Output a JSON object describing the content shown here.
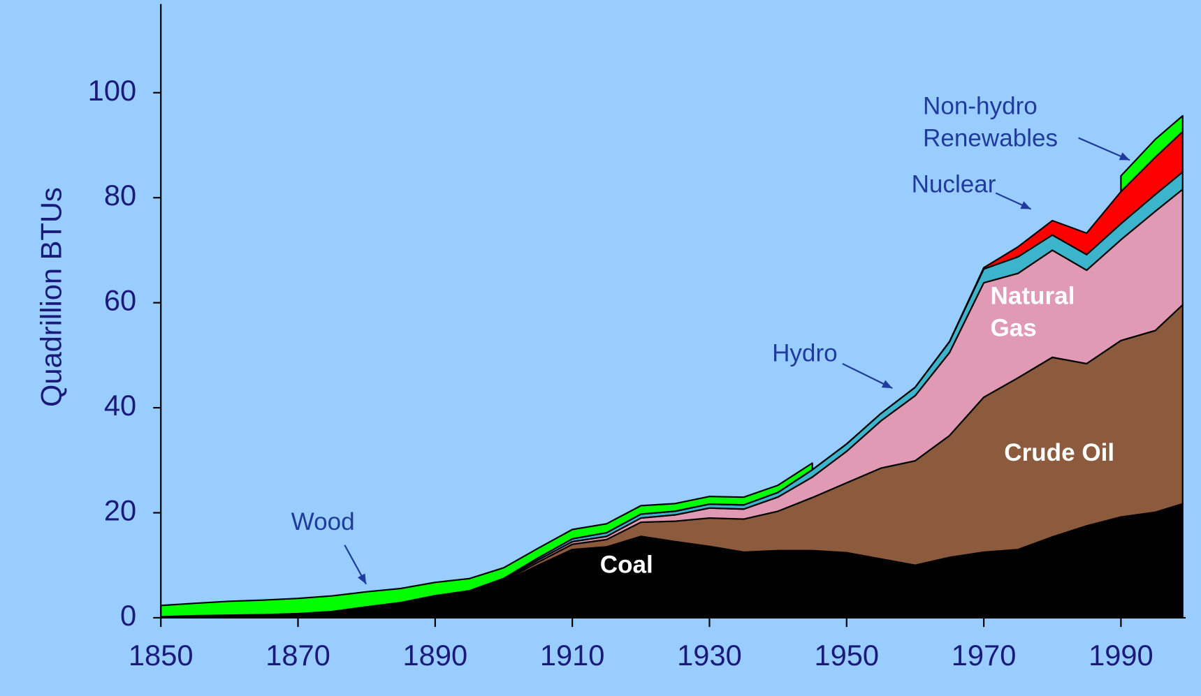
{
  "chart_data": {
    "type": "stacked-area",
    "y_label": "Quadrillion BTUs",
    "x": [
      1850,
      1855,
      1860,
      1865,
      1870,
      1875,
      1880,
      1885,
      1890,
      1895,
      1900,
      1905,
      1910,
      1915,
      1920,
      1925,
      1930,
      1935,
      1940,
      1945,
      1950,
      1955,
      1960,
      1965,
      1970,
      1975,
      1980,
      1985,
      1990,
      1995,
      1999
    ],
    "series": [
      {
        "name": "Coal",
        "color": "#000000",
        "values": [
          0.2,
          0.4,
          0.5,
          0.6,
          0.8,
          1.2,
          2.0,
          2.8,
          4.0,
          4.9,
          6.8,
          10,
          13,
          13.5,
          15.5,
          14.5,
          13.6,
          12.5,
          12.8,
          12.8,
          12.4,
          11.2,
          10,
          11.5,
          12.5,
          13,
          15.4,
          17.5,
          19.2,
          20.1,
          21.7
        ]
      },
      {
        "name": "Crude Oil",
        "color": "#8c5a3c",
        "values": [
          0,
          0,
          0,
          0,
          0,
          0,
          0.1,
          0.1,
          0.2,
          0.2,
          0.2,
          0.6,
          1.0,
          1.4,
          2.7,
          3.9,
          5.4,
          6.3,
          7.5,
          10.1,
          13.3,
          17.3,
          19.9,
          23.2,
          29.5,
          32.7,
          34.2,
          30.9,
          33.6,
          34.6,
          37.9
        ]
      },
      {
        "name": "Natural Gas",
        "color": "#e09ab4",
        "values": [
          0,
          0,
          0,
          0,
          0,
          0,
          0,
          0,
          0,
          0,
          0.25,
          0.4,
          0.5,
          0.6,
          0.8,
          1.2,
          1.9,
          1.9,
          2.7,
          3.9,
          6.0,
          9.0,
          12.4,
          15.8,
          21.8,
          19.9,
          20.4,
          17.8,
          19.2,
          22.7,
          22.0
        ]
      },
      {
        "name": "Hydro",
        "color": "#3cb4cc",
        "values": [
          0,
          0,
          0,
          0,
          0,
          0,
          0,
          0,
          0.02,
          0.05,
          0.25,
          0.39,
          0.54,
          0.7,
          0.74,
          0.7,
          0.75,
          0.8,
          0.88,
          1.4,
          1.4,
          1.4,
          1.6,
          2.06,
          2.63,
          3.15,
          2.9,
          2.97,
          3.05,
          3.2,
          3.3
        ]
      },
      {
        "name": "Nuclear",
        "color": "#ff0000",
        "values": [
          0,
          0,
          0,
          0,
          0,
          0,
          0,
          0,
          0,
          0,
          0,
          0,
          0,
          0,
          0,
          0,
          0,
          0,
          0,
          0,
          0,
          0,
          0.006,
          0.04,
          0.24,
          1.9,
          2.74,
          4.08,
          6.1,
          7.1,
          7.7
        ]
      },
      {
        "name": "Wood",
        "color": "#00ff00",
        "values": [
          2.14,
          2.36,
          2.64,
          2.77,
          2.89,
          2.97,
          2.85,
          2.68,
          2.52,
          2.31,
          2.02,
          1.84,
          1.77,
          1.7,
          1.61,
          1.45,
          1.45,
          1.47,
          1.36,
          1.26,
          null,
          null,
          null,
          null,
          null,
          null,
          null,
          null,
          null,
          null,
          null
        ]
      },
      {
        "name": "Non-hydro Renewables",
        "color": "#00ff00",
        "values": [
          null,
          null,
          null,
          null,
          null,
          null,
          null,
          null,
          null,
          null,
          null,
          null,
          null,
          null,
          null,
          null,
          null,
          null,
          null,
          null,
          null,
          null,
          null,
          null,
          null,
          null,
          null,
          null,
          3.0,
          3.4,
          3.0
        ]
      }
    ],
    "xlim": [
      1850,
      2000
    ],
    "xticks": [
      1850,
      1870,
      1890,
      1910,
      1930,
      1950,
      1970,
      1990
    ],
    "ylim": [
      0,
      115
    ],
    "yticks": [
      0,
      20,
      40,
      60,
      80,
      100
    ]
  }
}
